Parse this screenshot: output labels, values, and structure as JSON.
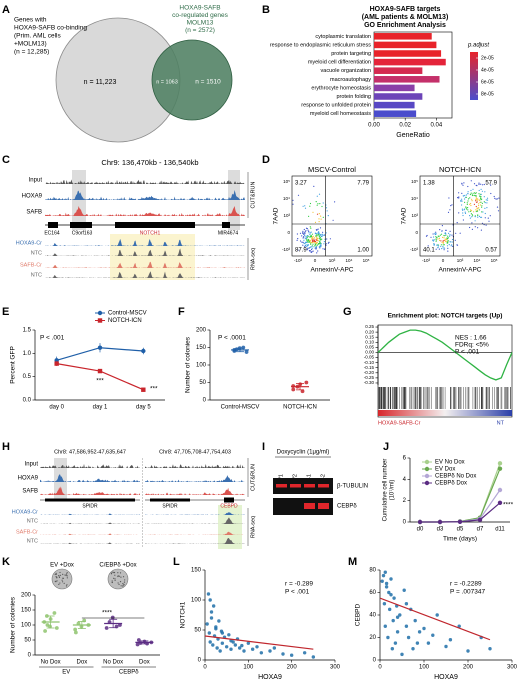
{
  "panels": {
    "A": {
      "letter": "A",
      "set1": [
        "Genes with",
        "HOXA9-SAFB co-binding",
        "(Prim. AML cells",
        "+MOLM13)",
        "(n = 12,285)"
      ],
      "set2": [
        "HOXA9-SAFB",
        "co-regulated genes",
        "MOLM13",
        "(n = 2572)"
      ],
      "only1": "n = 11,223",
      "both": "n = 1063",
      "only2": "n = 1510"
    },
    "C": {
      "letter": "C",
      "region": "Chr9: 136,470kb - 136,540kb",
      "tracks": [
        "Input",
        "HOXA9",
        "SAFB"
      ],
      "genes": [
        "EC164",
        "C9orf163",
        "NOTCH1",
        "MIR4674"
      ],
      "rna": [
        "HOXA9-Cr",
        "NTC",
        "SAFB-Cr",
        "NTC"
      ],
      "assays": [
        "CUT&RUN",
        "RNA-seq"
      ]
    },
    "D": {
      "letter": "D",
      "plots": [
        {
          "title": "MSCV-Control",
          "quadrants": [
            "3.27",
            "7.79",
            "87.9",
            "1.00"
          ]
        },
        {
          "title": "NOTCH-ICN",
          "quadrants": [
            "1.38",
            "57.9",
            "40.1",
            "0.57"
          ]
        }
      ],
      "ylabel": "7AAD",
      "xlabel": "AnnexinV-APC",
      "yticks": [
        "10⁵",
        "10⁴",
        "10³",
        "0",
        "-10³"
      ],
      "xticks": [
        "-10³",
        "0",
        "10³",
        "10⁴",
        "10⁵"
      ]
    },
    "H": {
      "letter": "H",
      "regions": [
        "Chr8: 47,586,952-47,635,647",
        "Chr8: 47,705,708-47,754,403"
      ],
      "tracks": [
        "Input",
        "HOXA9",
        "SAFB"
      ],
      "genes": [
        "SPIDR",
        "SPIDR",
        "CEBPD"
      ],
      "rna": [
        "HOXA9-Cr",
        "NTC",
        "SAFB-Cr",
        "NTC"
      ],
      "assays": [
        "CUT&RUN",
        "RNA-seq"
      ]
    },
    "I": {
      "letter": "I",
      "treatment": "Doxycyclin (1μg/ml)",
      "lanes": [
        "EV1",
        "EV2",
        "Cl-1",
        "Cl-2"
      ],
      "proteins": [
        "β-TUBULIN",
        "CEBPδ"
      ]
    }
  },
  "chart_data": [
    {
      "letter": "B",
      "type": "barh",
      "title": [
        "HOXA9-SAFB targets",
        "(AML patients & MOLM13)",
        "GO Enrichment Analysis"
      ],
      "categories": [
        "cytoplasmic translation",
        "response to endoplasmic reticulum stress",
        "protein targeting",
        "myeloid cell differentiation",
        "vacuole organization",
        "macroautophagy",
        "erythrocyte homeostasis",
        "protein folding",
        "response to unfolded protein",
        "myeloid cell homeostasis"
      ],
      "values": [
        0.037,
        0.04,
        0.043,
        0.046,
        0.031,
        0.042,
        0.026,
        0.031,
        0.026,
        0.027
      ],
      "colors": [
        "#e8232a",
        "#e8232a",
        "#e8232a",
        "#e4243a",
        "#d42a50",
        "#c4306a",
        "#8a3fa8",
        "#6c44b8",
        "#5848c4",
        "#4a4ccc"
      ],
      "xlabel": "GeneRatio",
      "xlim": [
        0,
        0.05
      ],
      "xticks": [
        {
          "value": 0,
          "label": "0.00"
        },
        0.02,
        0.04
      ],
      "legend": {
        "title": "p.adjust",
        "clim": [
          1e-05,
          9e-05
        ],
        "colors": [
          "#e8232a",
          "#4a4ccc"
        ],
        "ticks": [
          {
            "value": 2e-05,
            "label": "2e-05"
          },
          {
            "value": 4e-05,
            "label": "4e-05"
          },
          {
            "value": 6e-05,
            "label": "6e-05"
          },
          {
            "value": 8e-05,
            "label": "8e-05"
          }
        ]
      }
    },
    {
      "letter": "E",
      "type": "line",
      "categories": [
        "day 0",
        "day 1",
        "day 5"
      ],
      "series": [
        {
          "name": "Control-MSCV",
          "color": "#1f5fa8",
          "marker": "circle",
          "values": [
            0.85,
            1.12,
            1.05
          ],
          "errors": [
            0.08,
            0.1,
            0.07
          ]
        },
        {
          "name": "NOTCH-ICN",
          "color": "#c9252c",
          "marker": "square",
          "values": [
            0.78,
            0.62,
            0.22
          ],
          "errors": [
            0.05,
            0.03,
            0.04
          ]
        }
      ],
      "ylabel": "Percent GFP",
      "ylim": [
        0,
        1.5
      ],
      "yticks": [
        {
          "value": 0,
          "label": "0.0"
        },
        0.5,
        {
          "value": 1,
          "label": "1.0"
        },
        1.5
      ],
      "annotations": [
        "P < .001",
        "***",
        "***"
      ]
    },
    {
      "letter": "F",
      "type": "dots",
      "categories": [
        "Control-MSCV",
        "NOTCH-ICN"
      ],
      "colors": [
        "#1f5fa8",
        "#c9252c"
      ],
      "points": [
        [
          140,
          145,
          148,
          150,
          137,
          143
        ],
        [
          30,
          38,
          45,
          25,
          50,
          40
        ]
      ],
      "values": [
        143,
        38
      ],
      "errors": [
        5,
        9
      ],
      "ylabel": "Number of colonies",
      "ylim": [
        0,
        200
      ],
      "yticks": [
        0,
        50,
        100,
        150,
        200
      ],
      "annotations": [
        "P < .0001"
      ]
    },
    {
      "letter": "G",
      "type": "gsea",
      "title": "Enrichment plot: NOTCH targets (Up)",
      "color": "#2fb344",
      "values": [
        0,
        0.05,
        0.1,
        0.14,
        0.18,
        0.2,
        0.22,
        0.22,
        0.21,
        0.19,
        0.16,
        0.13,
        0.1,
        0.06,
        0.02,
        -0.02,
        -0.06,
        -0.1,
        -0.14,
        -0.18,
        -0.22,
        -0.25,
        -0.27,
        -0.25,
        -0.12,
        0
      ],
      "ylim": [
        -0.32,
        0.27
      ],
      "yticks": [
        0.25,
        {
          "value": 0.2,
          "label": "0.20"
        },
        0.15,
        {
          "value": 0.1,
          "label": "0.10"
        },
        0.05,
        {
          "value": 0,
          "label": "0.00"
        },
        -0.05,
        {
          "value": -0.1,
          "label": "-0.10"
        },
        -0.15,
        {
          "value": -0.2,
          "label": "-0.20"
        },
        -0.25,
        {
          "value": -0.3,
          "label": "-0.30"
        }
      ],
      "ends": [
        "HOXA9-SAFB-Cr",
        "NT"
      ],
      "annotations": [
        "NES : 1.66",
        "FDRq: <5%",
        "P < .001"
      ]
    },
    {
      "letter": "J",
      "type": "line",
      "categories": [
        "d0",
        "d3",
        "d5",
        "d7",
        "d11"
      ],
      "series": [
        {
          "name": "EV No Dox",
          "color": "#a8d08d",
          "marker": "circle",
          "values": [
            0,
            0,
            0.05,
            0.4,
            5.5
          ]
        },
        {
          "name": "EV Dox",
          "color": "#6aa84f",
          "marker": "circle",
          "values": [
            0,
            0,
            0.05,
            0.4,
            5.0
          ]
        },
        {
          "name": "CEBPδ No Dox",
          "color": "#b4a7d6",
          "marker": "circle",
          "values": [
            0,
            0,
            0.03,
            0.3,
            3.0
          ]
        },
        {
          "name": "CEBPδ Dox",
          "color": "#5b2c83",
          "marker": "circle",
          "values": [
            0,
            0,
            0.02,
            0.2,
            1.8
          ]
        }
      ],
      "ylabel": [
        "Cumulative cell number",
        "(10⁷/ml)"
      ],
      "xlabel": "Time (days)",
      "ylim": [
        0,
        6
      ],
      "yticks": [
        0,
        2,
        4,
        6
      ],
      "annotations": [
        "****"
      ]
    },
    {
      "letter": "K",
      "type": "dots",
      "images": [
        "EV +Dox",
        "C/EBPδ +Dox"
      ],
      "categories": [
        "No Dox",
        "Dox",
        "No Dox",
        "Dox"
      ],
      "groups": [
        "EV",
        "CEBPδ"
      ],
      "colors": [
        "#8fc46f",
        "#8fc46f",
        "#5b2c83",
        "#5b2c83"
      ],
      "points": [
        [
          80,
          100,
          120,
          140,
          90,
          110,
          130,
          95
        ],
        [
          85,
          105,
          95,
          115,
          100,
          75
        ],
        [
          90,
          110,
          125,
          95,
          100
        ],
        [
          35,
          40,
          45,
          38,
          42,
          50
        ]
      ],
      "values": [
        110,
        100,
        105,
        42
      ],
      "errors": [
        20,
        12,
        14,
        5
      ],
      "ylabel": "Number of colonies",
      "ylim": [
        0,
        200
      ],
      "yticks": [
        0,
        50,
        100,
        150,
        200
      ],
      "annotations": [
        "****"
      ]
    },
    {
      "letter": "L",
      "type": "scatter",
      "color": "#1f6fa8",
      "x": [
        5,
        8,
        10,
        12,
        15,
        18,
        20,
        22,
        25,
        28,
        30,
        32,
        35,
        38,
        40,
        45,
        50,
        55,
        60,
        65,
        70,
        75,
        80,
        90,
        100,
        110,
        120,
        130,
        150,
        160,
        180,
        200,
        230,
        250,
        15,
        25,
        40,
        60,
        85,
        12
      ],
      "y": [
        60,
        110,
        45,
        30,
        70,
        25,
        90,
        40,
        55,
        20,
        35,
        65,
        15,
        48,
        28,
        38,
        22,
        42,
        18,
        30,
        25,
        35,
        20,
        15,
        28,
        18,
        22,
        12,
        15,
        20,
        10,
        8,
        12,
        5,
        80,
        52,
        45,
        32,
        24,
        100
      ],
      "fit": {
        "x": [
          0,
          250
        ],
        "y": [
          40,
          18
        ],
        "color": "#c0262d"
      },
      "xlabel": "HOXA9",
      "ylabel": "NOTCH1",
      "xlim": [
        0,
        300
      ],
      "xticks": [
        0,
        100,
        200,
        300
      ],
      "ylim": [
        0,
        150
      ],
      "yticks": [
        0,
        50,
        100,
        150
      ],
      "annotations": [
        "r = -0.289",
        "P < .001"
      ]
    },
    {
      "letter": "M",
      "type": "scatter",
      "color": "#1f6fa8",
      "x": [
        5,
        8,
        10,
        12,
        15,
        18,
        20,
        22,
        25,
        28,
        30,
        32,
        35,
        38,
        40,
        45,
        50,
        55,
        60,
        65,
        70,
        75,
        80,
        90,
        100,
        110,
        120,
        130,
        150,
        160,
        180,
        200,
        230,
        250,
        15,
        25,
        40,
        60,
        85,
        12
      ],
      "y": [
        70,
        75,
        50,
        30,
        65,
        20,
        60,
        45,
        72,
        10,
        35,
        55,
        15,
        48,
        25,
        40,
        5,
        62,
        30,
        20,
        45,
        10,
        35,
        25,
        28,
        15,
        22,
        40,
        12,
        18,
        30,
        8,
        20,
        10,
        68,
        58,
        38,
        50,
        15,
        78
      ],
      "fit": {
        "x": [
          0,
          250
        ],
        "y": [
          55,
          18
        ],
        "color": "#c0262d"
      },
      "xlabel": "HOXA9",
      "ylabel": "CEBPD",
      "xlim": [
        0,
        300
      ],
      "xticks": [
        0,
        100,
        200,
        300
      ],
      "ylim": [
        0,
        80
      ],
      "yticks": [
        0,
        20,
        40,
        60,
        80
      ],
      "annotations": [
        "r = -0.2289",
        "P = .007347"
      ]
    }
  ]
}
